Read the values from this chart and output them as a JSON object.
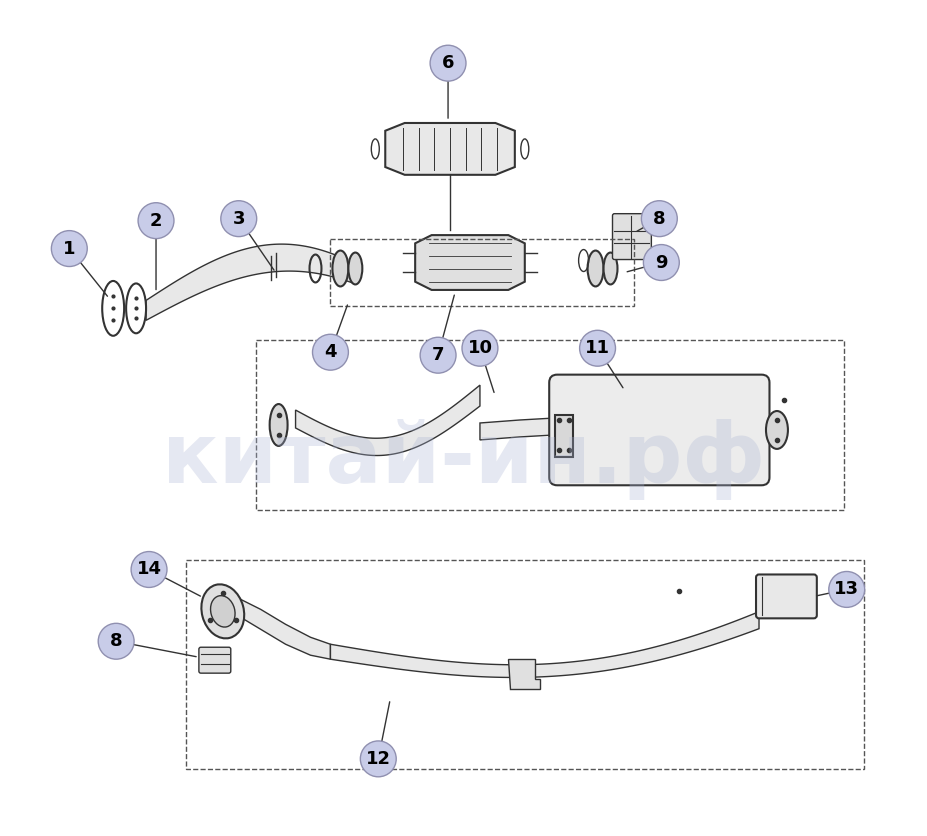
{
  "bg_color": "#ffffff",
  "bubble_color": "#c8cce8",
  "bubble_edge_color": "#9090b0",
  "line_color": "#1a1a1a",
  "part_line_color": "#333333",
  "watermark_color": "#aab4d4",
  "watermark_text": "китай-ин.рф",
  "watermark_alpha": 0.3,
  "figsize": [
    9.28,
    8.36
  ],
  "dpi": 100
}
